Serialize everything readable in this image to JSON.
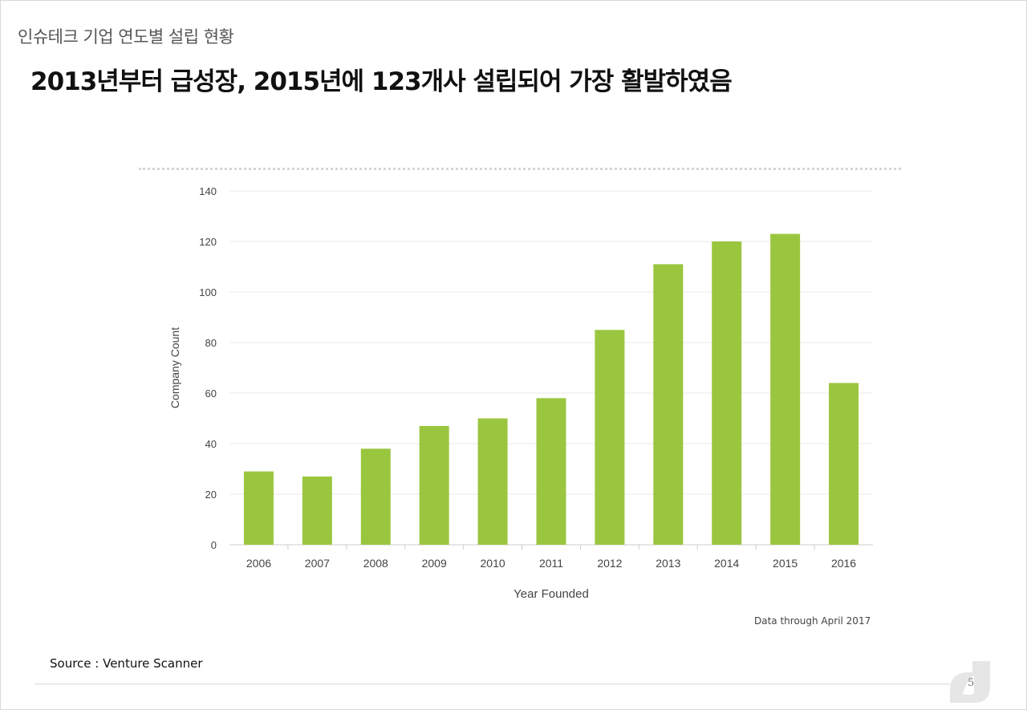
{
  "page": {
    "section_title": "인슈테크 기업 연도별 설립 현황",
    "headline": "2013년부터 급성장, 2015년에 123개사 설립되어 가장 활발하였음",
    "note": "Data through April 2017",
    "source": "Source : Venture Scanner",
    "page_number": "5"
  },
  "colors": {
    "bar": "#9ac63f",
    "grid": "#e8e8e8",
    "axis_text": "#444444"
  },
  "chart_data": {
    "type": "bar",
    "title": "",
    "xlabel": "Year Founded",
    "ylabel": "Company Count",
    "categories": [
      "2006",
      "2007",
      "2008",
      "2009",
      "2010",
      "2011",
      "2012",
      "2013",
      "2014",
      "2015",
      "2016"
    ],
    "values": [
      29,
      27,
      38,
      47,
      50,
      58,
      85,
      111,
      120,
      123,
      64
    ],
    "ylim": [
      0,
      140
    ],
    "yticks": [
      0,
      20,
      40,
      60,
      80,
      100,
      120,
      140
    ],
    "grid": true,
    "legend": "none"
  }
}
